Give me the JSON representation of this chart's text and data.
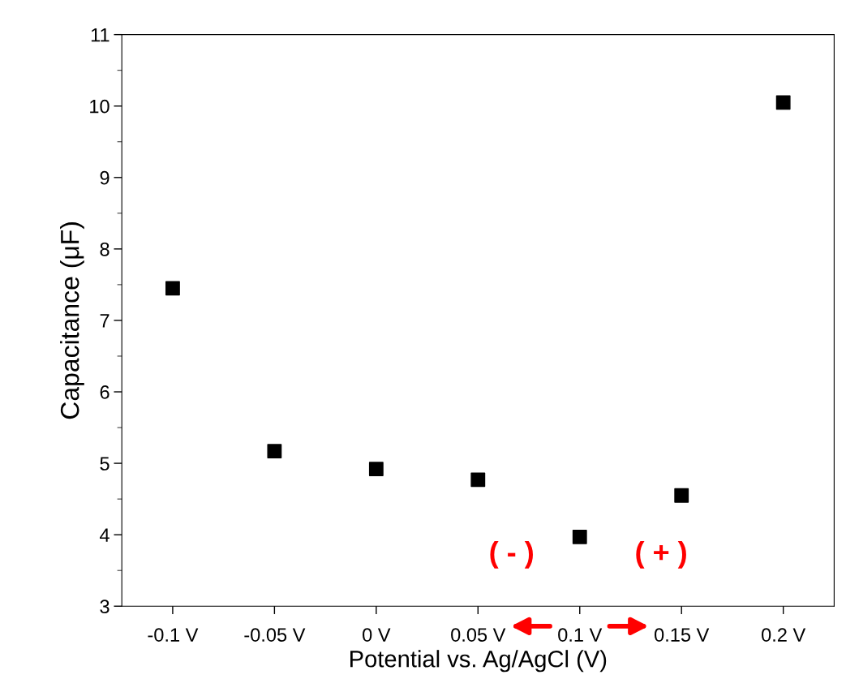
{
  "chart_data": {
    "type": "scatter",
    "xlabel": "Potential vs. Ag/AgCl (V)",
    "ylabel": "Capacitance (μF)",
    "categories": [
      "-0.1 V",
      "-0.05 V",
      "0 V",
      "0.05 V",
      "0.1 V",
      "0.15 V",
      "0.2 V"
    ],
    "values": [
      7.45,
      5.17,
      4.92,
      4.77,
      3.97,
      4.55,
      10.05
    ],
    "color": "#000000",
    "marker": "square",
    "ylim": [
      3,
      11
    ],
    "yticks": [
      3,
      4,
      5,
      6,
      7,
      8,
      9,
      10,
      11
    ],
    "grid": false,
    "legend": false,
    "annotations": [
      "( - )",
      "( + )"
    ]
  }
}
